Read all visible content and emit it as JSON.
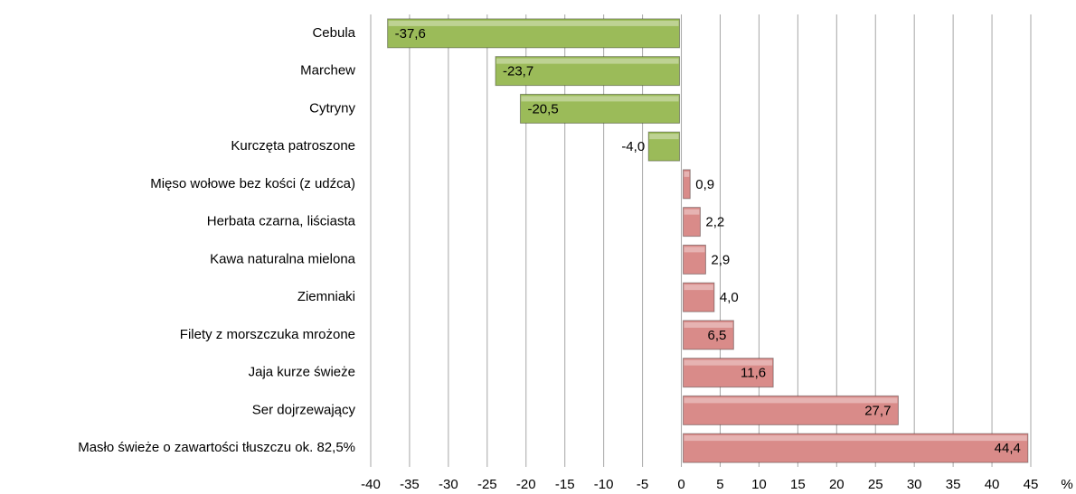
{
  "chart_data": {
    "type": "bar",
    "orientation": "horizontal",
    "categories": [
      "Cebula",
      "Marchew",
      "Cytryny",
      "Kurczęta patroszone",
      "Mięso wołowe bez kości (z udźca)",
      "Herbata czarna, liściasta",
      "Kawa naturalna mielona",
      "Ziemniaki",
      "Filety z morszczuka mrożone",
      "Jaja kurze świeże",
      "Ser dojrzewający",
      "Masło świeże o zawartości tłuszczu ok. 82,5%"
    ],
    "values": [
      -37.6,
      -23.7,
      -20.5,
      -4.0,
      0.9,
      2.2,
      2.9,
      4.0,
      6.5,
      11.6,
      27.7,
      44.4
    ],
    "value_labels": [
      "-37,6",
      "-23,7",
      "-20,5",
      "-4,0",
      "0,9",
      "2,2",
      "2,9",
      "4,0",
      "6,5",
      "11,6",
      "27,7",
      "44,4"
    ],
    "colors": [
      "#9bbb59",
      "#9bbb59",
      "#9bbb59",
      "#9bbb59",
      "#d98b89",
      "#d98b89",
      "#d98b89",
      "#d98b89",
      "#d98b89",
      "#d98b89",
      "#d98b89",
      "#d98b89"
    ],
    "x_unit": "%",
    "xlim": [
      -40,
      45
    ],
    "xticks": [
      -40,
      -35,
      -30,
      -25,
      -20,
      -15,
      -10,
      -5,
      0,
      5,
      10,
      15,
      20,
      25,
      30,
      35,
      40,
      45
    ],
    "grid": true
  }
}
